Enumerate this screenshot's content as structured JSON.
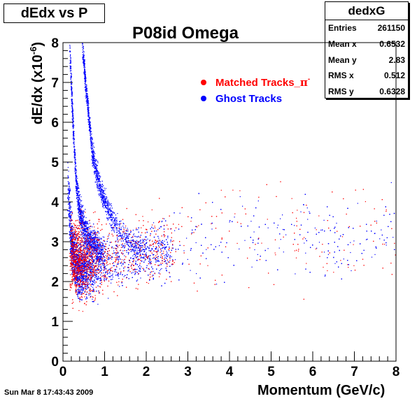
{
  "canvas_title": "dEdx vs P",
  "stats_box": {
    "name": "dedxG",
    "rows": [
      {
        "label": "Entries",
        "value": "261150"
      },
      {
        "label": "Mean x",
        "value": "0.6532"
      },
      {
        "label": "Mean y",
        "value": "2.83"
      },
      {
        "label": "RMS x",
        "value": "0.512"
      },
      {
        "label": "RMS y",
        "value": "0.6328"
      }
    ]
  },
  "timestamp": "Sun Mar  8 17:43:43 2009",
  "colors": {
    "matched": "#ff0000",
    "ghost": "#0000ff",
    "axis": "#000000"
  },
  "chart_data": {
    "type": "scatter",
    "title": "P08id Omega",
    "xlabel": "Momentum  (GeV/c)",
    "ylabel": "dE/dx (x10^-6)",
    "ylabel_base": "dE/dx (x10",
    "ylabel_exp": "-6",
    "ylabel_close": ")",
    "xlim": [
      0,
      8
    ],
    "ylim": [
      0,
      8
    ],
    "xticks": [
      "0",
      "1",
      "2",
      "3",
      "4",
      "5",
      "6",
      "7",
      "8"
    ],
    "yticks": [
      "0",
      "1",
      "2",
      "3",
      "4",
      "5",
      "6",
      "7",
      "8"
    ],
    "grid": false,
    "legend_position": "top-right",
    "series": [
      {
        "name": "Matched Tracks_π⁻",
        "label_base": "Matched Tracks_",
        "label_pi": "π",
        "label_sup": "-",
        "color": "#ff0000",
        "bands": [
          {
            "p_min": 0.15,
            "p_max": 8.0,
            "center": [
              [
                0.2,
                2.6
              ],
              [
                0.5,
                2.5
              ],
              [
                1.0,
                2.6
              ],
              [
                2.0,
                2.8
              ],
              [
                3.0,
                3.0
              ],
              [
                5.0,
                3.2
              ],
              [
                8.0,
                3.3
              ]
            ],
            "spread": 0.45
          }
        ]
      },
      {
        "name": "Ghost Tracks",
        "color": "#0000ff",
        "bands": [
          {
            "p_min": 0.1,
            "p_max": 8.0,
            "center": [
              [
                0.1,
                4.5
              ],
              [
                0.2,
                2.9
              ],
              [
                0.35,
                2.3
              ],
              [
                0.6,
                2.4
              ],
              [
                1.0,
                2.5
              ],
              [
                2.0,
                2.7
              ],
              [
                3.0,
                2.9
              ],
              [
                5.0,
                3.1
              ],
              [
                8.0,
                3.2
              ]
            ],
            "spread": 0.35
          },
          {
            "p_min": 0.15,
            "p_max": 1.0,
            "center": [
              [
                0.15,
                8.0
              ],
              [
                0.2,
                6.7
              ],
              [
                0.3,
                4.6
              ],
              [
                0.4,
                3.7
              ],
              [
                0.6,
                3.1
              ],
              [
                1.0,
                2.7
              ]
            ],
            "spread": 0.18
          },
          {
            "p_min": 0.45,
            "p_max": 2.0,
            "center": [
              [
                0.45,
                8.0
              ],
              [
                0.55,
                6.8
              ],
              [
                0.7,
                5.2
              ],
              [
                0.9,
                4.3
              ],
              [
                1.2,
                3.5
              ],
              [
                1.5,
                3.1
              ],
              [
                2.0,
                2.8
              ]
            ],
            "spread": 0.14
          }
        ]
      }
    ]
  }
}
